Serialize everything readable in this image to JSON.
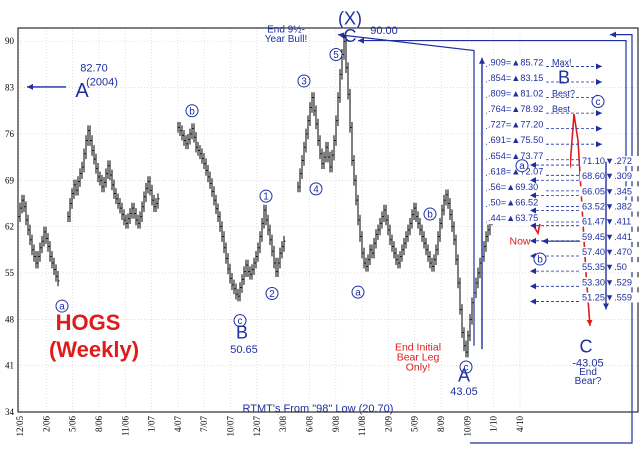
{
  "chart_data": {
    "type": "bar",
    "title": "HOGS",
    "subtitle": "(Weekly)",
    "ylim": [
      34,
      92
    ],
    "y_ticks": [
      34,
      41,
      48,
      55,
      62,
      69,
      76,
      83,
      90
    ],
    "x_ticks": [
      "12/05",
      "2/06",
      "5/06",
      "8/06",
      "11/06",
      "1/07",
      "4/07",
      "7/07",
      "10/07",
      "12/07",
      "3/08",
      "6/08",
      "9/08",
      "11/08",
      "2/09",
      "5/09",
      "8/09",
      "10/09",
      "1/10",
      "4/10"
    ],
    "grid": true,
    "colors": {
      "price": "#000000",
      "wave": "#1f2fa0",
      "projection": "#e01b1b"
    },
    "price_segments": [
      {
        "start": 0,
        "values": [
          63.5,
          64.8,
          66.0,
          65.0,
          63.0,
          61.5,
          60.0,
          58.5,
          57.5,
          56.5,
          57.5,
          58.8,
          59.8,
          61.2,
          60.2,
          59.0,
          57.5,
          56.5,
          55.5,
          54.5,
          53.8
        ]
      },
      {
        "start": 25,
        "values": [
          63.5,
          65.5,
          67.0,
          68.3,
          67.5,
          68.8,
          70.0,
          71.0,
          73.0,
          75.0,
          76.5,
          75.0,
          73.5,
          72.2,
          70.8,
          69.5,
          69.0,
          68.0,
          68.7,
          70.0,
          71.2,
          69.8,
          68.3,
          67.0,
          66.2,
          65.5,
          64.8,
          63.8,
          63.0,
          62.5,
          63.2,
          64.0,
          64.8,
          64.0,
          63.0,
          62.5,
          63.5,
          65.0,
          66.5,
          67.8,
          68.8,
          67.5,
          66.0,
          65.0,
          65.5,
          66.2
        ]
      },
      {
        "start": 80,
        "values": [
          77.0,
          76.5,
          75.8,
          75.0,
          74.5,
          75.2,
          76.0,
          76.8,
          75.5,
          74.0,
          73.5,
          73.0,
          72.3,
          71.5,
          70.5,
          69.5,
          68.5,
          67.3,
          66.0,
          64.7,
          63.5,
          62.0,
          60.5,
          58.8,
          57.2,
          55.6,
          54.2,
          53.2,
          52.6,
          51.8,
          51.5,
          52.8,
          54.0,
          55.2,
          56.2,
          55.2,
          54.8,
          55.5,
          56.5,
          57.5,
          58.8,
          60.5,
          62.5,
          64.5,
          63.0,
          61.5,
          60.0,
          58.3,
          56.5,
          55.2,
          56.5,
          58.0,
          59.0,
          59.8
        ]
      },
      {
        "start": 140,
        "values": [
          68.0,
          70.0,
          72.0,
          74.0,
          76.0,
          78.0,
          80.0,
          81.5,
          79.5,
          77.5,
          75.0,
          73.0,
          71.5,
          72.5,
          74.0,
          72.5,
          71.0,
          72.8,
          75.0,
          78.0,
          81.5,
          85.0,
          88.0,
          90.0,
          86.0,
          82.0,
          77.0,
          72.0,
          69.0,
          66.0,
          63.0,
          60.5,
          58.0,
          56.5,
          56.0,
          57.0,
          58.5,
          58.0,
          59.5,
          60.8,
          61.5,
          62.5,
          63.5,
          64.5,
          63.0,
          61.5,
          60.0,
          59.0,
          58.0,
          57.0,
          56.5,
          57.5,
          58.5,
          59.5,
          60.5,
          61.5,
          62.5,
          63.8,
          64.8,
          63.5,
          62.5,
          61.5,
          60.5,
          59.5,
          58.5,
          57.5,
          56.5,
          56.0,
          57.0,
          58.5,
          60.5,
          62.5,
          64.5,
          66.0,
          66.8,
          65.5,
          63.8,
          62.0,
          60.0,
          57.0,
          53.5,
          49.5,
          46.0,
          44.0,
          43.05,
          45.5,
          48.0,
          50.5,
          52.0,
          53.5,
          55.0,
          56.5,
          57.5,
          59.0,
          60.5,
          61.5,
          63.0,
          64.5,
          65.5,
          67.0,
          68.5,
          69.5,
          70.5
        ]
      }
    ],
    "projection_path": [
      [
        246,
        69.5
      ],
      [
        248,
        72.0
      ],
      [
        250,
        67.5
      ],
      [
        252,
        69.8
      ],
      [
        254,
        63.0
      ],
      [
        256,
        66.0
      ],
      [
        258,
        62.0
      ],
      [
        260,
        61.0
      ],
      [
        262,
        64.0
      ],
      [
        264,
        68.0
      ],
      [
        266,
        73.0
      ],
      [
        268,
        69.0
      ],
      [
        270,
        70.5
      ],
      [
        272,
        75.0
      ],
      [
        274,
        70.0
      ],
      [
        276,
        71.0
      ],
      [
        278,
        79.0
      ],
      [
        280,
        75.0
      ],
      [
        282,
        65.0
      ],
      [
        284,
        55.0
      ],
      [
        286,
        47.0
      ]
    ],
    "wave_labels": [
      {
        "text": "a",
        "style": "circle",
        "x": 22,
        "y": 50.0,
        "color": "#1f2fa0"
      },
      {
        "text": "b",
        "style": "circle",
        "x": 87,
        "y": 79.5,
        "color": "#1f2fa0"
      },
      {
        "text": "c",
        "style": "circle",
        "x": 111,
        "y": 47.8,
        "color": "#1f2fa0"
      },
      {
        "text": "1",
        "style": "circle",
        "x": 124,
        "y": 66.6,
        "color": "#1f2fa0"
      },
      {
        "text": "2",
        "style": "circle",
        "x": 127,
        "y": 51.9,
        "color": "#1f2fa0"
      },
      {
        "text": "3",
        "style": "circle",
        "x": 143,
        "y": 84.0,
        "color": "#1f2fa0"
      },
      {
        "text": "4",
        "style": "circle",
        "x": 149,
        "y": 67.7,
        "color": "#1f2fa0"
      },
      {
        "text": "5",
        "style": "circle",
        "x": 159,
        "y": 88.0,
        "color": "#1f2fa0"
      },
      {
        "text": "a",
        "style": "circle",
        "x": 170,
        "y": 52.1,
        "color": "#1f2fa0"
      },
      {
        "text": "b",
        "style": "circle",
        "x": 206,
        "y": 63.9,
        "color": "#1f2fa0"
      },
      {
        "text": "c",
        "style": "circle",
        "x": 224,
        "y": 40.8,
        "color": "#1f2fa0"
      },
      {
        "text": "a",
        "style": "circle",
        "x": 252,
        "y": 71.2,
        "color": "#1f2fa0"
      },
      {
        "text": "b",
        "style": "circle",
        "x": 261,
        "y": 57.1,
        "color": "#1f2fa0"
      },
      {
        "text": "c",
        "style": "circle",
        "x": 290,
        "y": 80.9,
        "color": "#1f2fa0"
      }
    ],
    "big_labels": [
      {
        "text": "A",
        "x": 32,
        "y": 81.6,
        "size": 20,
        "color": "#1f2fa0"
      },
      {
        "text": "(2004)",
        "x": 42,
        "y": 83.3,
        "size": 11,
        "color": "#1f2fa0"
      },
      {
        "text": "82.70",
        "x": 38,
        "y": 85.4,
        "size": 11,
        "color": "#1f2fa0"
      },
      {
        "text": "B",
        "x": 112,
        "y": 45.1,
        "size": 18,
        "color": "#1f2fa0"
      },
      {
        "text": "50.65",
        "x": 113,
        "y": 42.9,
        "size": 11,
        "color": "#1f2fa0"
      },
      {
        "text": "(X)",
        "x": 166,
        "y": 92.5,
        "size": 18,
        "color": "#1f2fa0"
      },
      {
        "text": "C",
        "x": 166,
        "y": 89.9,
        "size": 18,
        "color": "#1f2fa0"
      },
      {
        "text": "90.00",
        "x": 183,
        "y": 91.1,
        "size": 11,
        "color": "#1f2fa0"
      },
      {
        "text": "End 9½-",
        "x": 134,
        "y": 91.3,
        "size": 10,
        "color": "#1f2fa0"
      },
      {
        "text": "Year Bull!",
        "x": 134,
        "y": 89.9,
        "size": 10,
        "color": "#1f2fa0"
      },
      {
        "text": "A",
        "x": 223,
        "y": 38.6,
        "size": 18,
        "color": "#1f2fa0"
      },
      {
        "text": "43.05",
        "x": 223,
        "y": 36.6,
        "size": 11,
        "color": "#1f2fa0"
      },
      {
        "text": "B",
        "x": 273,
        "y": 83.6,
        "size": 18,
        "color": "#1f2fa0"
      },
      {
        "text": "C",
        "x": 284,
        "y": 43.0,
        "size": 18,
        "color": "#1f2fa0"
      },
      {
        "text": "-43.05",
        "x": 285,
        "y": 40.9,
        "size": 11,
        "color": "#1f2fa0"
      },
      {
        "text": "End",
        "x": 285,
        "y": 39.6,
        "size": 10,
        "color": "#1f2fa0"
      },
      {
        "text": "Bear?",
        "x": 285,
        "y": 38.2,
        "size": 10,
        "color": "#1f2fa0"
      }
    ],
    "fib_levels_up": [
      {
        "ratio": ".909",
        "value": "85.72",
        "note": "Max!"
      },
      {
        "ratio": ".854",
        "value": "83.15",
        "note": ""
      },
      {
        "ratio": ".809",
        "value": "81.02",
        "note": "Best?"
      },
      {
        "ratio": ".764",
        "value": "78.92",
        "note": "Best"
      },
      {
        "ratio": ".727",
        "value": "77.20",
        "note": ""
      },
      {
        "ratio": ".691",
        "value": "75.50",
        "note": ""
      },
      {
        "ratio": ".654",
        "value": "73.77",
        "note": ""
      },
      {
        "ratio": ".618",
        "value": "72.07",
        "note": ""
      },
      {
        "ratio": ".56",
        "value": "69.30",
        "note": ""
      },
      {
        "ratio": ".50",
        "value": "66.52",
        "note": ""
      },
      {
        "ratio": ".44",
        "value": "63.75",
        "note": ""
      }
    ],
    "fib_levels_down": [
      {
        "value": "71.10",
        "ratio": ".272"
      },
      {
        "value": "68.60",
        "ratio": ".309"
      },
      {
        "value": "66.05",
        "ratio": ".345"
      },
      {
        "value": "63.52",
        "ratio": ".382"
      },
      {
        "value": "61.47",
        "ratio": ".411"
      },
      {
        "value": "59.45",
        "ratio": ".441"
      },
      {
        "value": "57.40",
        "ratio": ".470"
      },
      {
        "value": "55.35",
        "ratio": ".50"
      },
      {
        "value": "53.30",
        "ratio": ".529"
      },
      {
        "value": "51.25",
        "ratio": ".559"
      }
    ],
    "annotations": [
      {
        "text": "End Initial",
        "x": 200,
        "y": 43.3,
        "color": "#e01b1b"
      },
      {
        "text": "Bear Leg",
        "x": 200,
        "y": 41.8,
        "color": "#e01b1b"
      },
      {
        "text": "Only!",
        "x": 200,
        "y": 40.3,
        "color": "#e01b1b"
      },
      {
        "text": "Now",
        "x": 251,
        "y": 59.3,
        "color": "#e01b1b"
      },
      {
        "text": "RTMT's From \"98\" Low (20.70)",
        "x": 150,
        "y": 34.0,
        "color": "#1f2fa0"
      }
    ]
  }
}
